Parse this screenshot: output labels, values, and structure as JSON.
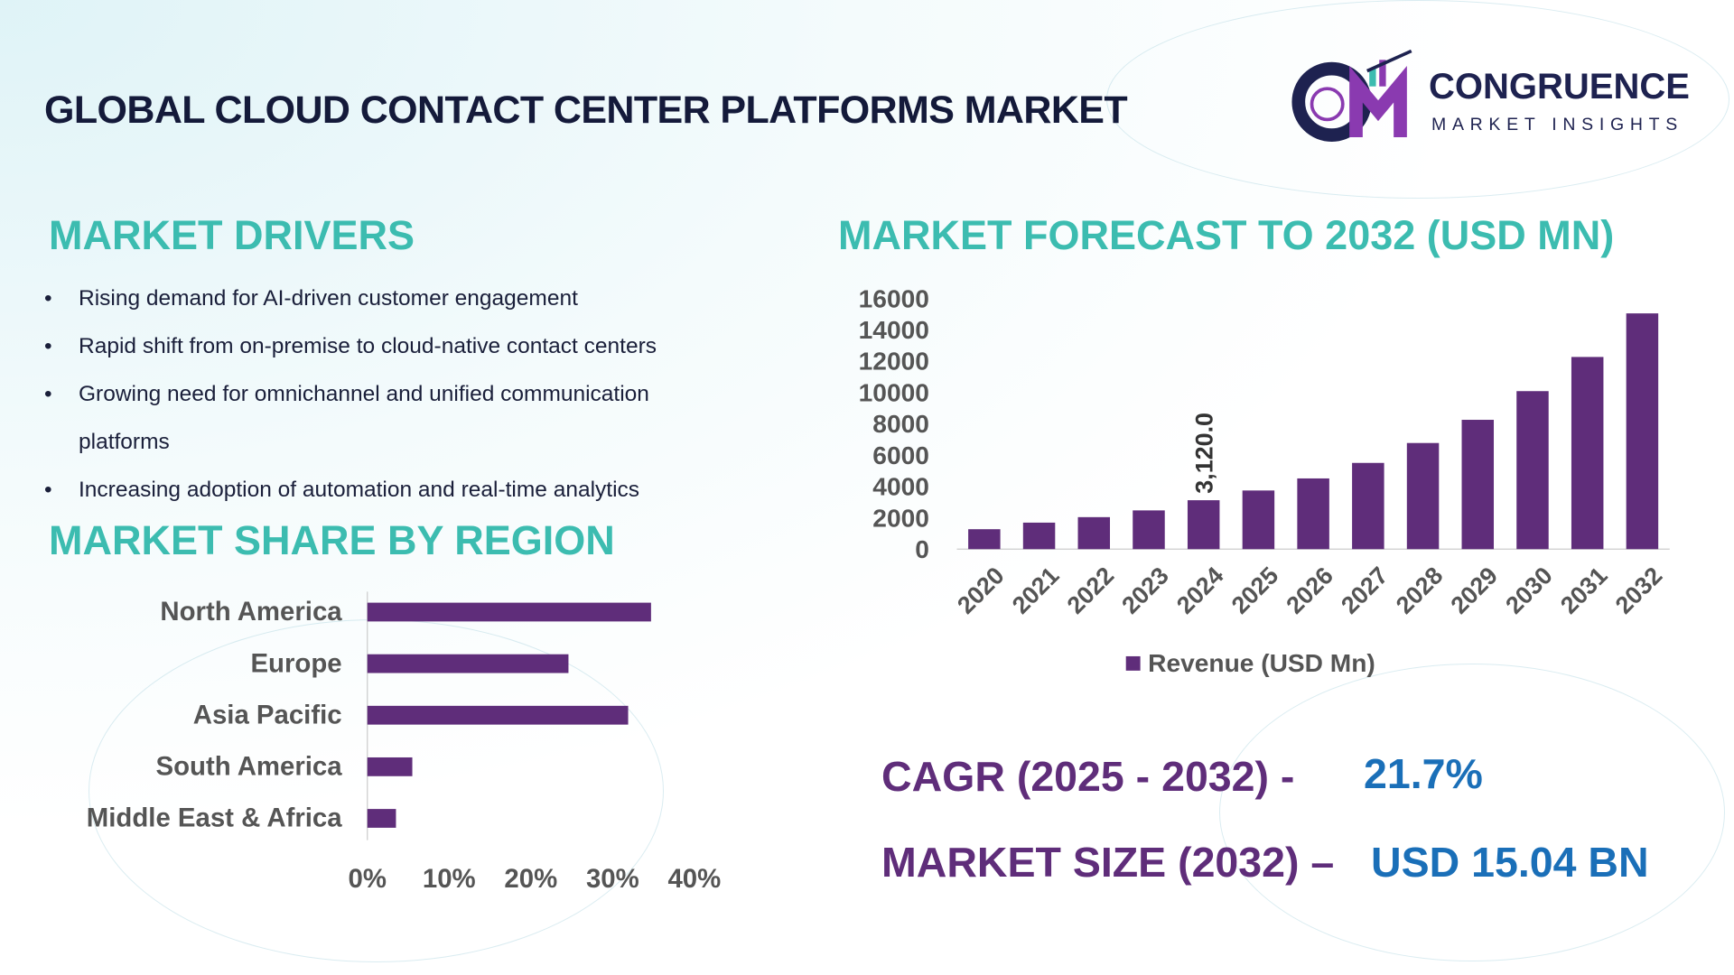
{
  "title": "GLOBAL CLOUD CONTACT CENTER PLATFORMS MARKET",
  "logo": {
    "main": "CONGRUENCE",
    "sub": "MARKET INSIGHTS"
  },
  "drivers": {
    "heading": "MARKET DRIVERS",
    "items": [
      "Rising demand for AI-driven customer engagement",
      "Rapid shift from on-premise to cloud-native contact centers",
      "Growing need for omnichannel and unified communication",
      "platforms",
      "Increasing adoption of automation and real-time analytics"
    ]
  },
  "region": {
    "heading": "MARKET SHARE BY REGION"
  },
  "forecast": {
    "heading": "MARKET FORECAST TO 2032 (USD MN)"
  },
  "kpis": {
    "cagr_label": "CAGR (2025 - 2032) -",
    "cagr_value": "21.7%",
    "size_label": "MARKET SIZE (2032) –",
    "size_value": "USD 15.04 BN"
  },
  "colors": {
    "bar": "#5f2d7a",
    "heading": "#3cbcb0",
    "kpi_label": "#5f2d7a",
    "kpi_value": "#1a6fb8"
  },
  "chart_data": [
    {
      "type": "bar",
      "orientation": "vertical",
      "categories": [
        "2020",
        "2021",
        "2022",
        "2023",
        "2024",
        "2025",
        "2026",
        "2027",
        "2028",
        "2029",
        "2030",
        "2031",
        "2032"
      ],
      "series": [
        {
          "name": "Revenue (USD Mn)",
          "values": [
            1270,
            1690,
            2040,
            2470,
            3120,
            3740,
            4510,
            5500,
            6770,
            8250,
            10080,
            12260,
            15040
          ]
        }
      ],
      "data_labels": [
        {
          "category": "2024",
          "text": "3,120.0"
        }
      ],
      "yticks": [
        "0",
        "2000",
        "4000",
        "6000",
        "8000",
        "10000",
        "12000",
        "14000",
        "16000"
      ],
      "ylim": [
        0,
        16000
      ],
      "legend": "bottom",
      "grid": false
    },
    {
      "type": "bar",
      "orientation": "horizontal",
      "categories": [
        "North America",
        "Europe",
        "Asia Pacific",
        "South America",
        "Middle East & Africa"
      ],
      "values": [
        34.7,
        24.6,
        31.9,
        5.5,
        3.5
      ],
      "xticks": [
        "0%",
        "10%",
        "20%",
        "30%",
        "40%"
      ],
      "xlim": [
        0,
        40
      ],
      "grid": false
    }
  ]
}
